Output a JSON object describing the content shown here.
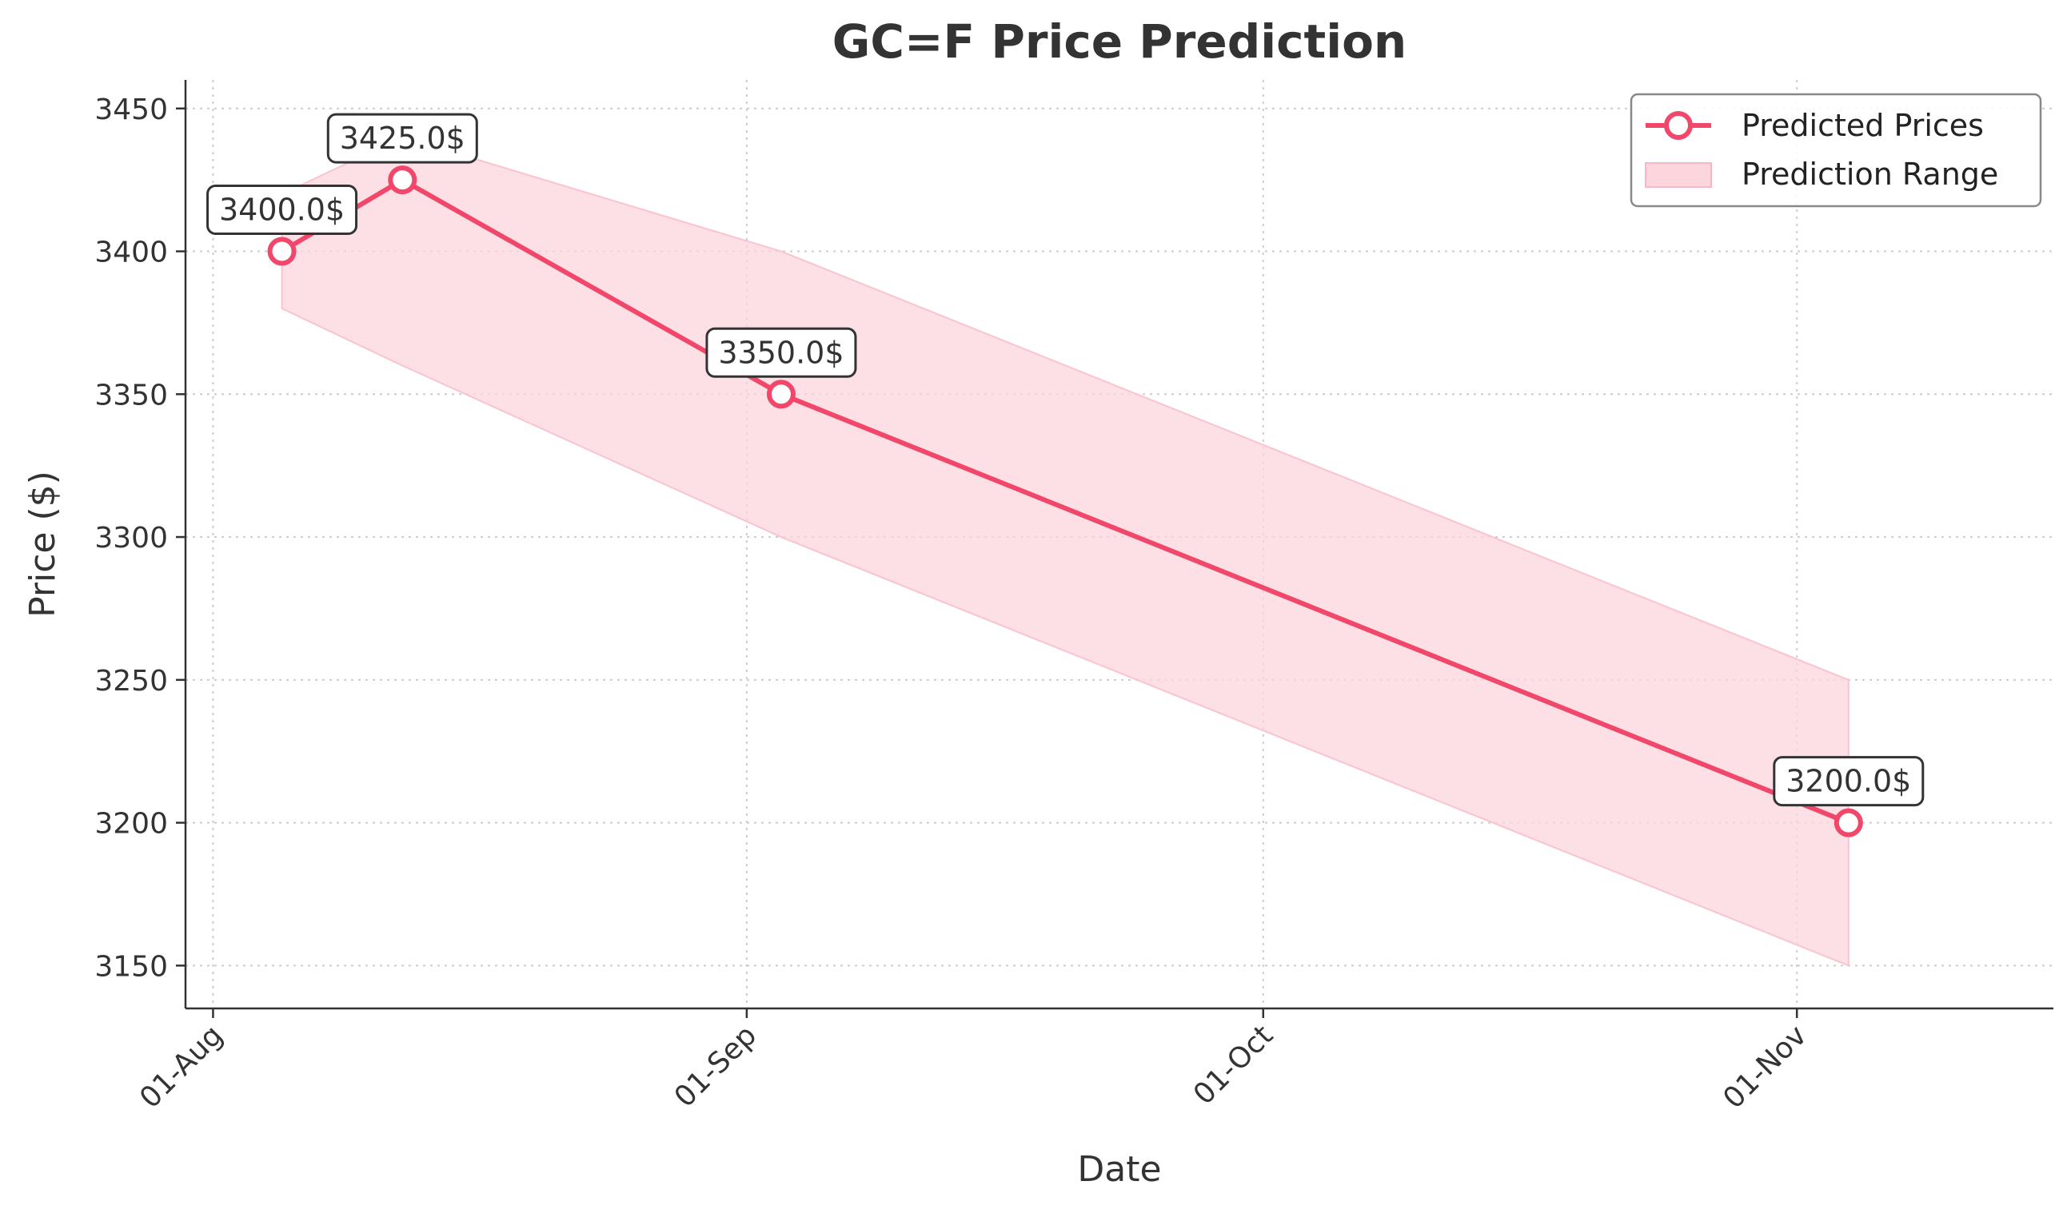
{
  "chart_data": {
    "type": "line",
    "title": "GC=F Price Prediction",
    "xlabel": "Date",
    "ylabel": "Price ($)",
    "x_ticks": [
      "01-Aug",
      "01-Sep",
      "01-Oct",
      "01-Nov"
    ],
    "y_ticks": [
      3150,
      3200,
      3250,
      3300,
      3350,
      3400,
      3450
    ],
    "ylim": [
      3135,
      3460
    ],
    "grid": true,
    "legend_position": "top-right",
    "series": [
      {
        "name": "Predicted Prices",
        "color": "#f0476a",
        "points": [
          {
            "date": "05-Aug",
            "value": 3400.0,
            "label": "3400.0$"
          },
          {
            "date": "12-Aug",
            "value": 3425.0,
            "label": "3425.0$"
          },
          {
            "date": "03-Sep",
            "value": 3350.0,
            "label": "3350.0$"
          },
          {
            "date": "04-Nov",
            "value": 3200.0,
            "label": "3200.0$"
          }
        ]
      },
      {
        "name": "Prediction Range",
        "color": "#fcd5dd",
        "points": [
          {
            "date": "05-Aug",
            "low": 3380,
            "high": 3420
          },
          {
            "date": "12-Aug",
            "low": 3360,
            "high": 3440
          },
          {
            "date": "03-Sep",
            "low": 3300,
            "high": 3400
          },
          {
            "date": "04-Nov",
            "low": 3150,
            "high": 3250
          }
        ]
      }
    ]
  }
}
